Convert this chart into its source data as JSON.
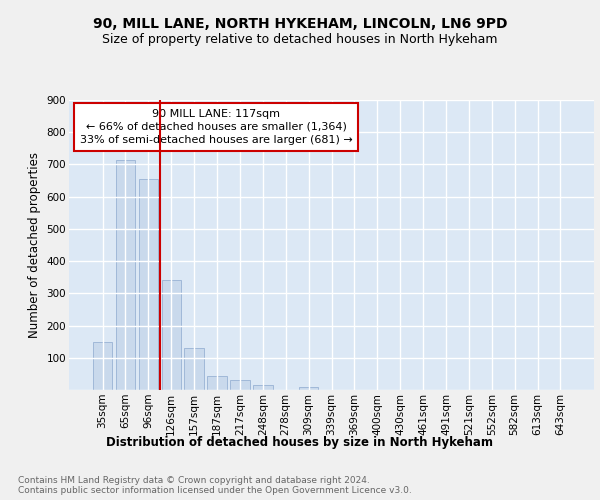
{
  "title1": "90, MILL LANE, NORTH HYKEHAM, LINCOLN, LN6 9PD",
  "title2": "Size of property relative to detached houses in North Hykeham",
  "xlabel": "Distribution of detached houses by size in North Hykeham",
  "ylabel": "Number of detached properties",
  "bar_labels": [
    "35sqm",
    "65sqm",
    "96sqm",
    "126sqm",
    "157sqm",
    "187sqm",
    "217sqm",
    "248sqm",
    "278sqm",
    "309sqm",
    "339sqm",
    "369sqm",
    "400sqm",
    "430sqm",
    "461sqm",
    "491sqm",
    "521sqm",
    "552sqm",
    "582sqm",
    "613sqm",
    "643sqm"
  ],
  "bar_values": [
    150,
    715,
    655,
    340,
    130,
    43,
    30,
    14,
    0,
    8,
    0,
    0,
    0,
    0,
    0,
    0,
    0,
    0,
    0,
    0,
    0
  ],
  "bar_color": "#c9d9ec",
  "bar_edgecolor": "#a0b8d8",
  "bg_color": "#dce8f5",
  "grid_color": "#ffffff",
  "vline_x": 2.5,
  "vline_color": "#cc0000",
  "annotation_text1": "90 MILL LANE: 117sqm",
  "annotation_text2": "← 66% of detached houses are smaller (1,364)",
  "annotation_text3": "33% of semi-detached houses are larger (681) →",
  "annotation_box_color": "#ffffff",
  "annotation_box_edgecolor": "#cc0000",
  "ylim": [
    0,
    900
  ],
  "yticks": [
    0,
    100,
    200,
    300,
    400,
    500,
    600,
    700,
    800,
    900
  ],
  "footnote": "Contains HM Land Registry data © Crown copyright and database right 2024.\nContains public sector information licensed under the Open Government Licence v3.0.",
  "title1_fontsize": 10,
  "title2_fontsize": 9,
  "xlabel_fontsize": 8.5,
  "ylabel_fontsize": 8.5,
  "tick_fontsize": 7.5,
  "annot_fontsize": 8,
  "footnote_fontsize": 6.5,
  "fig_facecolor": "#f0f0f0"
}
